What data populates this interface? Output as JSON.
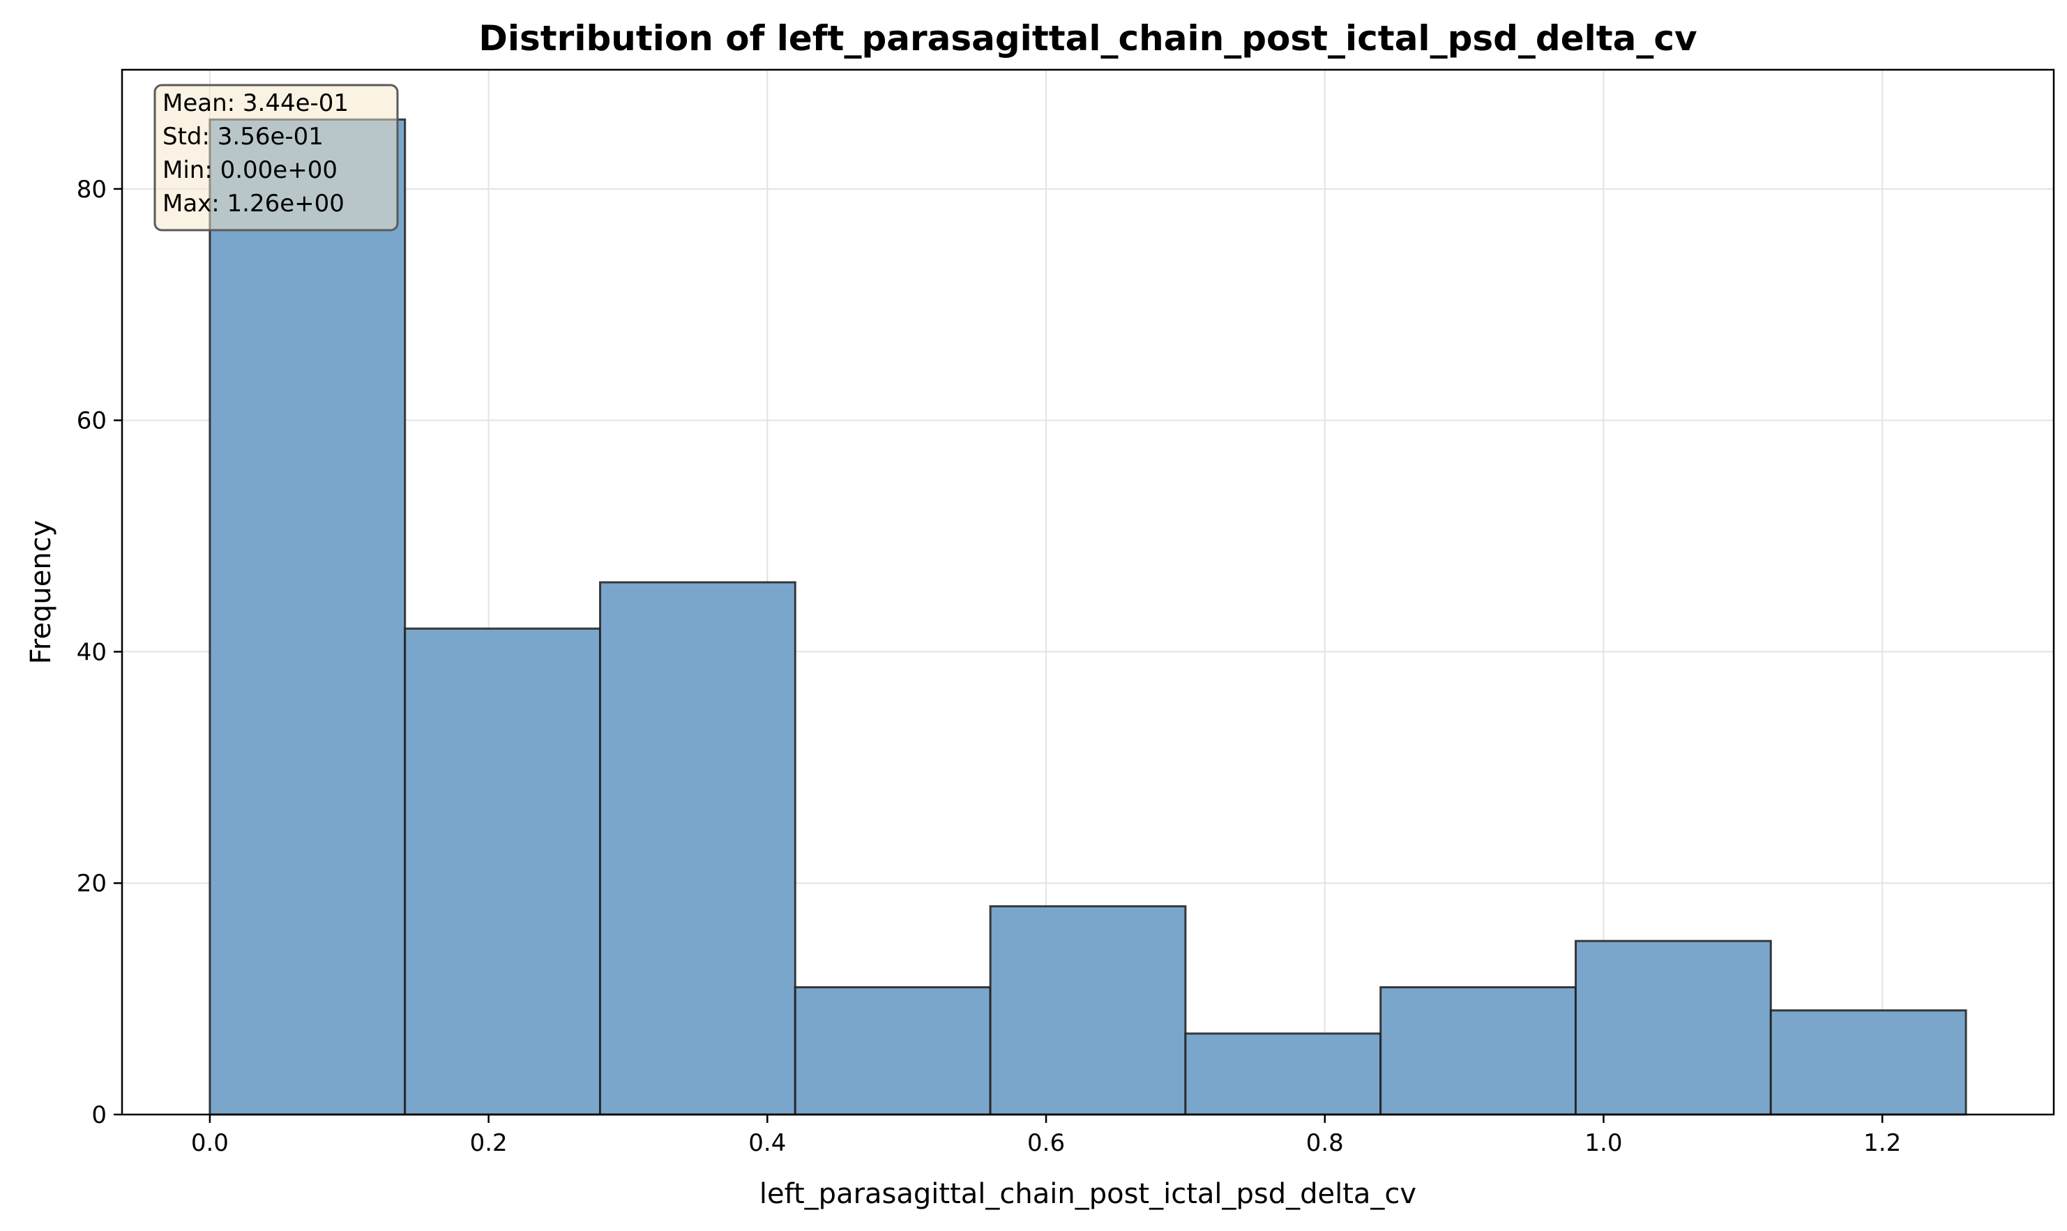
{
  "colors": {
    "bar_fill": "#7ba6cb",
    "bar_edge": "#1f1f1f",
    "grid": "#e3e3e3",
    "stats_box_fill": "#f6e6c7",
    "stats_box_edge": "#5a5a5a"
  },
  "chart_data": {
    "type": "bar",
    "title": "Distribution of left_parasagittal_chain_post_ictal_psd_delta_cv",
    "xlabel": "left_parasagittal_chain_post_ictal_psd_delta_cv",
    "ylabel": "Frequency",
    "bin_edges": [
      0.0,
      0.14,
      0.28,
      0.42,
      0.56,
      0.7,
      0.84,
      0.98,
      1.12,
      1.26
    ],
    "values": [
      86,
      42,
      46,
      11,
      18,
      7,
      11,
      15,
      9
    ],
    "xlim": [
      -0.063,
      1.323
    ],
    "ylim": [
      0,
      90.3
    ],
    "xticks": [
      0.0,
      0.2,
      0.4,
      0.6,
      0.8,
      1.0,
      1.2
    ],
    "xtick_labels": [
      "0.0",
      "0.2",
      "0.4",
      "0.6",
      "0.8",
      "1.0",
      "1.2"
    ],
    "yticks": [
      0,
      20,
      40,
      60,
      80
    ],
    "ytick_labels": [
      "0",
      "20",
      "40",
      "60",
      "80"
    ],
    "grid": true,
    "stats_box": {
      "position": "top-left",
      "lines": [
        "Mean: 3.44e-01",
        "Std: 3.56e-01",
        "Min: 0.00e+00",
        "Max: 1.26e+00"
      ]
    }
  }
}
